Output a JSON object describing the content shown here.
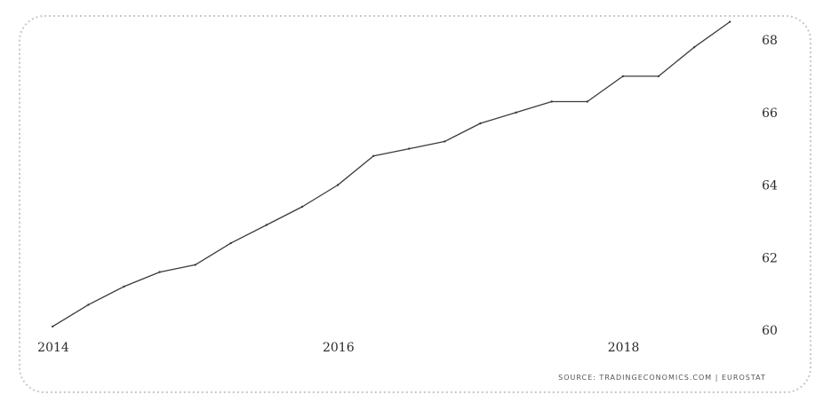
{
  "chart_data": {
    "type": "line",
    "title": "",
    "xlabel": "",
    "ylabel": "",
    "x_ticks": [
      "2014",
      "2016",
      "2018"
    ],
    "y_ticks": [
      "68",
      "66",
      "64",
      "62",
      "60"
    ],
    "xlim": [
      2014.0,
      2018.9
    ],
    "ylim": [
      60,
      68
    ],
    "grid": false,
    "y_axis_side": "right",
    "series": [
      {
        "color": "#3a3a3a",
        "x": [
          2014.12,
          2014.37,
          2014.62,
          2014.87,
          2015.12,
          2015.37,
          2015.62,
          2015.87,
          2016.12,
          2016.37,
          2016.62,
          2016.87,
          2017.12,
          2017.37,
          2017.62,
          2017.87,
          2018.12,
          2018.37,
          2018.62,
          2018.87
        ],
        "values": [
          60.1,
          60.7,
          61.2,
          61.6,
          61.8,
          62.4,
          62.9,
          63.4,
          64.0,
          64.8,
          65.0,
          65.2,
          65.7,
          66.0,
          66.3,
          66.3,
          67.0,
          67.0,
          67.8,
          68.5
        ]
      }
    ],
    "source": "SOURCE: TRADINGECONOMICS.COM | EUROSTAT"
  }
}
